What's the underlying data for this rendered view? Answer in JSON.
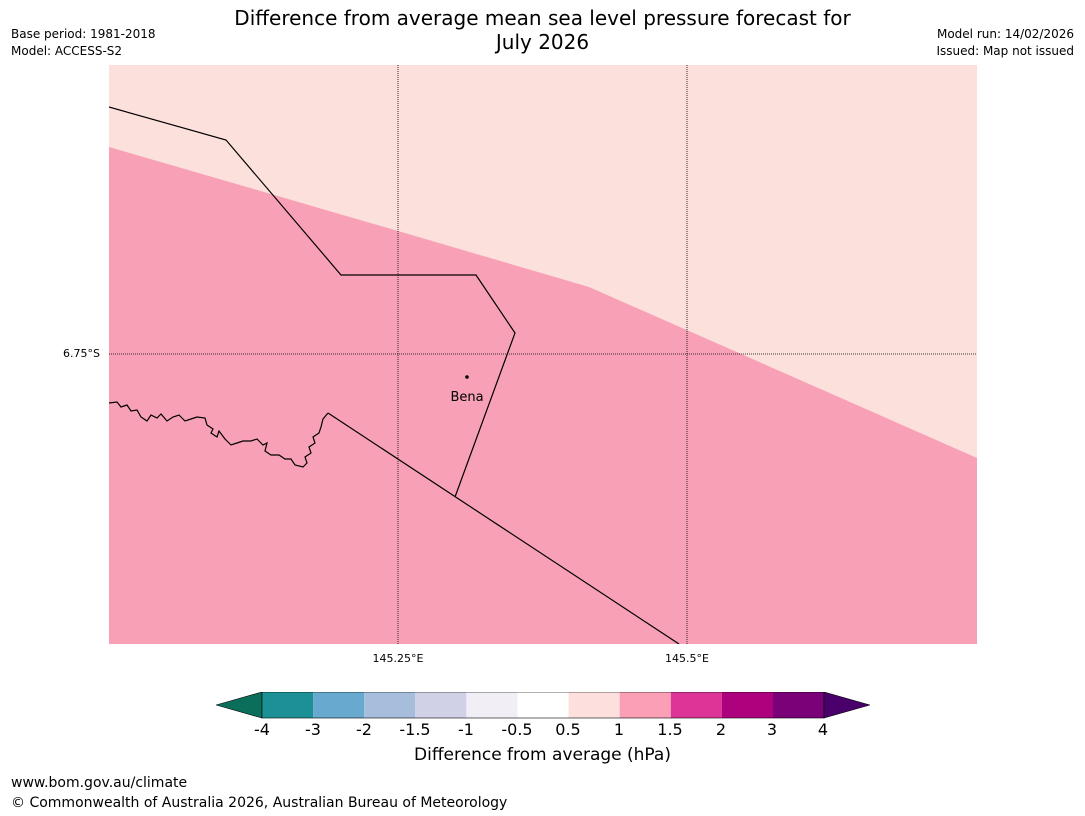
{
  "title": {
    "line1": "Difference from average mean sea level pressure forecast for",
    "line2": "July 2026"
  },
  "header_left": {
    "base_period": "Base period: 1981-2018",
    "model": "Model: ACCESS-S2"
  },
  "header_right": {
    "model_run": "Model run: 14/02/2026",
    "issued": "Issued: Map not issued"
  },
  "map": {
    "place_name": "Bena",
    "lat_gridline_label": "6.75°S",
    "lon_gridline_labels": [
      "145.25°E",
      "145.5°E"
    ]
  },
  "colorbar": {
    "title": "Difference from average (hPa)",
    "ticks": [
      "-4",
      "-3",
      "-2",
      "-1.5",
      "-1",
      "-0.5",
      "0.5",
      "1",
      "1.5",
      "2",
      "3",
      "4"
    ],
    "colors": {
      "below_min": "#0b6e5a",
      "bins": [
        "#1b9195",
        "#67a9cf",
        "#a6bddb",
        "#d0d1e6",
        "#f1eef6",
        "#ffffff",
        "#fde0dd",
        "#fa9fb5",
        "#dd3497",
        "#ae017e",
        "#7a0177"
      ],
      "above_max": "#49006a"
    }
  },
  "fill_colors": {
    "light_pink_band": "#fce0dc",
    "mid_pink_band": "#f8a0b6"
  },
  "footer": {
    "url": "www.bom.gov.au/climate",
    "copyright": "© Commonwealth of Australia 2026, Australian Bureau of Meteorology"
  }
}
